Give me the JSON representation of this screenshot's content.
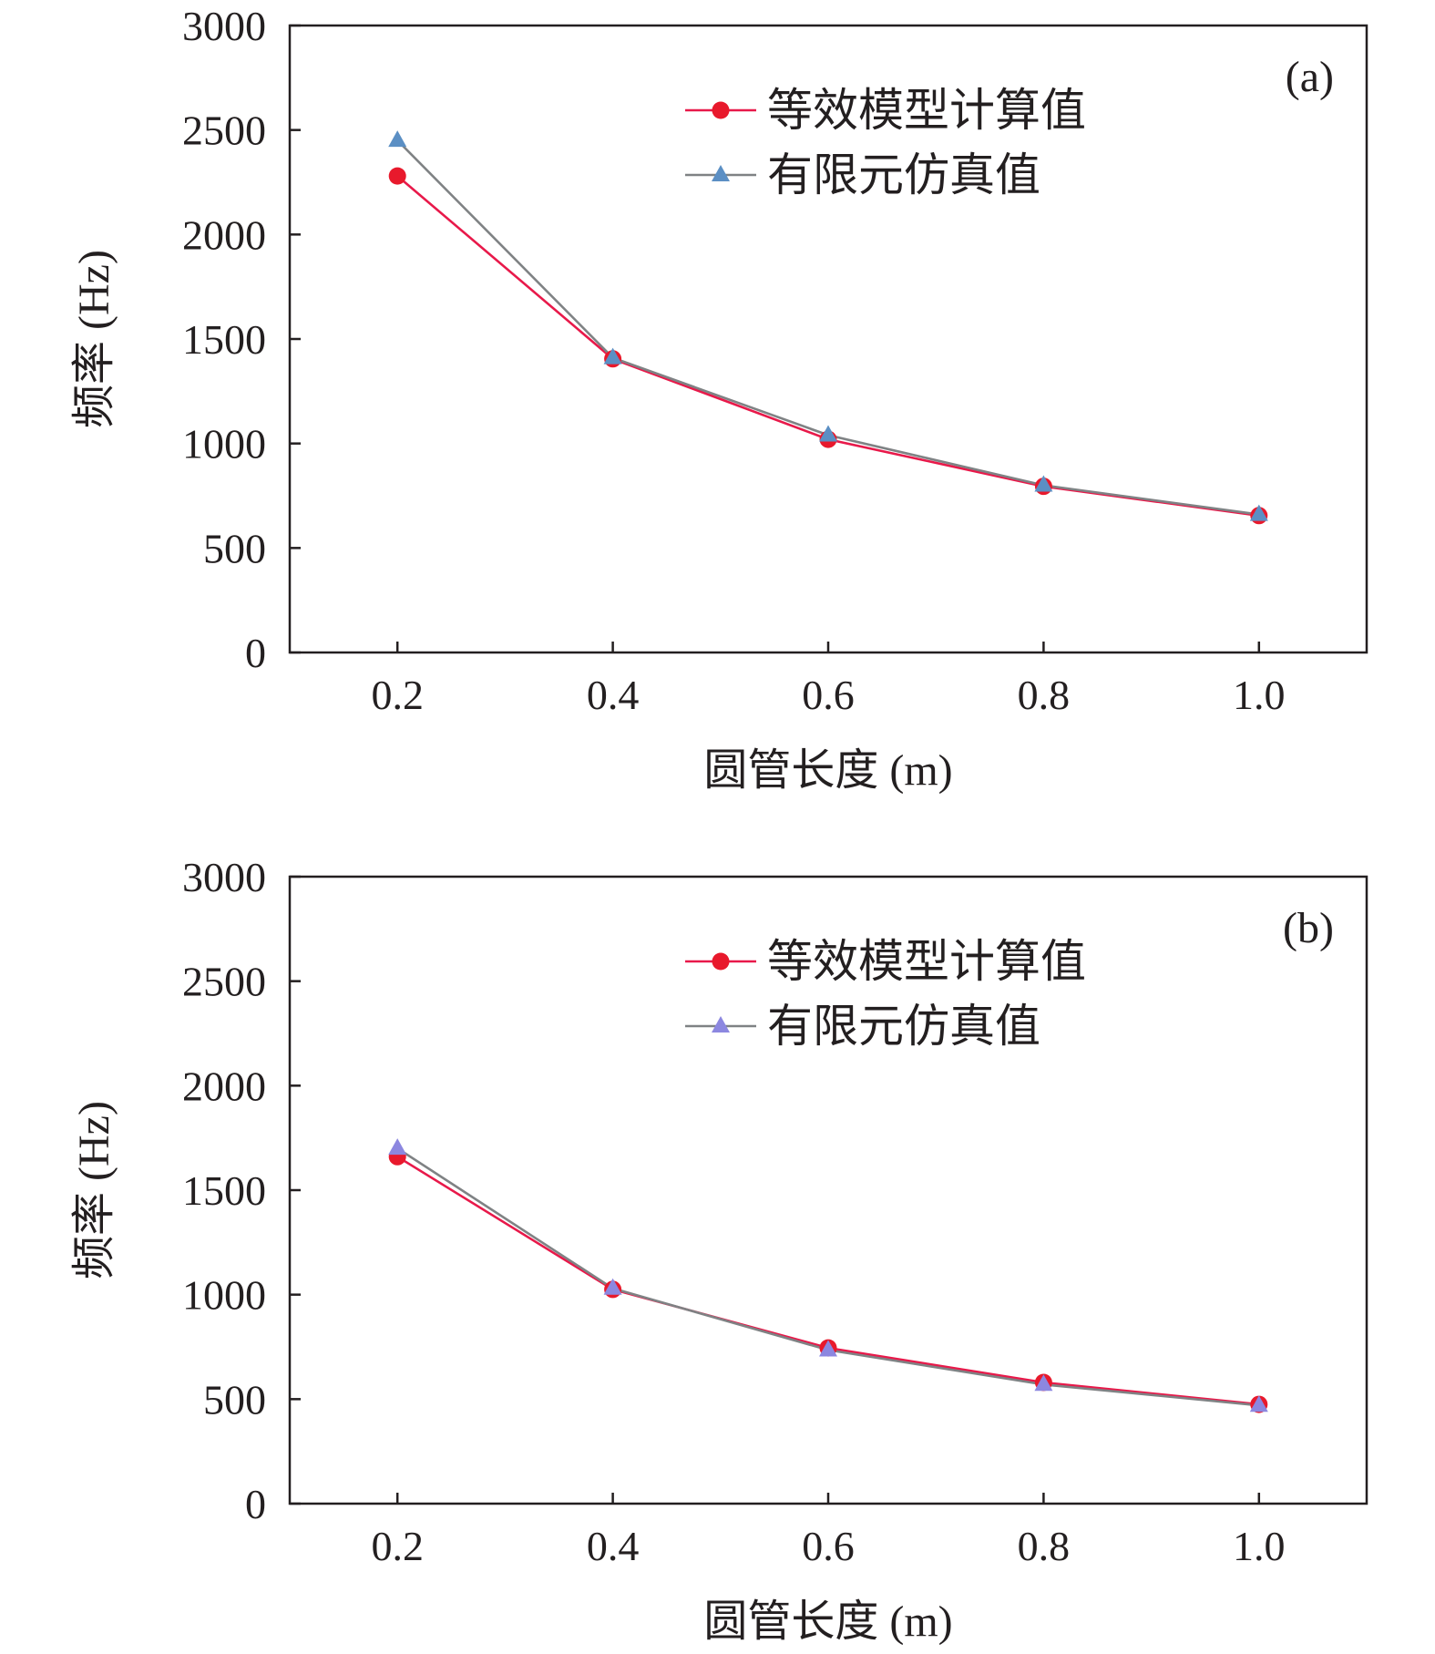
{
  "chart_data": [
    {
      "type": "line",
      "panel_label": "(a)",
      "x": [
        0.2,
        0.4,
        0.6,
        0.8,
        1.0
      ],
      "x_tick_labels": [
        "0.2",
        "0.4",
        "0.6",
        "0.8",
        "1.0"
      ],
      "y_tick_labels": [
        "0",
        "500",
        "1000",
        "1500",
        "2000",
        "2500",
        "3000"
      ],
      "xlabel": "圆管长度 (m)",
      "ylabel": "频率 (Hz)",
      "xlim": [
        0.1,
        1.1
      ],
      "ylim": [
        0,
        3000
      ],
      "grid": false,
      "legend_position": "top-center",
      "series": [
        {
          "name": "等效模型计算值",
          "marker": "circle",
          "line_color": "#e8194a",
          "marker_color": "#e8192c",
          "values": [
            2280,
            1405,
            1020,
            795,
            655
          ]
        },
        {
          "name": "有限元仿真值",
          "marker": "triangle",
          "line_color": "#7f8284",
          "marker_color": "#5b8fc4",
          "values": [
            2450,
            1410,
            1040,
            800,
            660
          ]
        }
      ]
    },
    {
      "type": "line",
      "panel_label": "(b)",
      "x": [
        0.2,
        0.4,
        0.6,
        0.8,
        1.0
      ],
      "x_tick_labels": [
        "0.2",
        "0.4",
        "0.6",
        "0.8",
        "1.0"
      ],
      "y_tick_labels": [
        "0",
        "500",
        "1000",
        "1500",
        "2000",
        "2500",
        "3000"
      ],
      "xlabel": "圆管长度 (m)",
      "ylabel": "频率 (Hz)",
      "xlim": [
        0.1,
        1.1
      ],
      "ylim": [
        0,
        3000
      ],
      "grid": false,
      "legend_position": "top-center",
      "series": [
        {
          "name": "等效模型计算值",
          "marker": "circle",
          "line_color": "#e8194a",
          "marker_color": "#e8192c",
          "values": [
            1660,
            1025,
            745,
            580,
            475
          ]
        },
        {
          "name": "有限元仿真值",
          "marker": "triangle",
          "line_color": "#7f8284",
          "marker_color": "#8c87e0",
          "values": [
            1700,
            1030,
            735,
            570,
            470
          ]
        }
      ]
    }
  ]
}
